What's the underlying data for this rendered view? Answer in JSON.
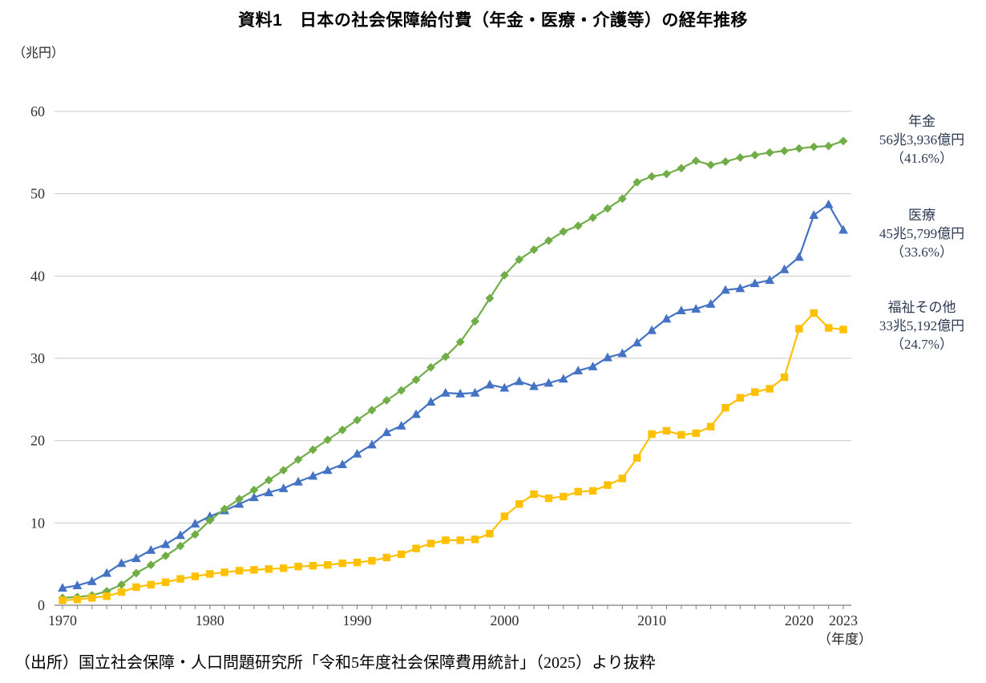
{
  "title": "資料1　日本の社会保障給付費（年金・医療・介護等）の経年推移",
  "y_axis_unit": "（兆円）",
  "x_axis_unit": "（年度）",
  "source": "（出所）国立社会保障・人口問題研究所「令和5年度社会保障費用統計」（2025）より抜粋",
  "annotations": [
    {
      "series": "pension",
      "lines": [
        "年金",
        "56兆3,936億円",
        "（41.6%）"
      ]
    },
    {
      "series": "medical",
      "lines": [
        "医療",
        "45兆5,799億円",
        "（33.6%）"
      ]
    },
    {
      "series": "welfare",
      "lines": [
        "福祉その他",
        "33兆5,192億円",
        "（24.7%）"
      ]
    }
  ],
  "chart_data": {
    "type": "line",
    "title": "資料1　日本の社会保障給付費（年金・医療・介護等）の経年推移",
    "xlabel": "年度",
    "ylabel": "兆円",
    "ylim": [
      0,
      60
    ],
    "yticks": [
      0,
      10,
      20,
      30,
      40,
      50,
      60
    ],
    "xticks": [
      1970,
      1980,
      1990,
      2000,
      2010,
      2020,
      2023
    ],
    "grid": true,
    "legend_position": "right",
    "x": [
      1970,
      1971,
      1972,
      1973,
      1974,
      1975,
      1976,
      1977,
      1978,
      1979,
      1980,
      1981,
      1982,
      1983,
      1984,
      1985,
      1986,
      1987,
      1988,
      1989,
      1990,
      1991,
      1992,
      1993,
      1994,
      1995,
      1996,
      1997,
      1998,
      1999,
      2000,
      2001,
      2002,
      2003,
      2004,
      2005,
      2006,
      2007,
      2008,
      2009,
      2010,
      2011,
      2012,
      2013,
      2014,
      2015,
      2016,
      2017,
      2018,
      2019,
      2020,
      2021,
      2022,
      2023
    ],
    "series": [
      {
        "id": "pension",
        "name": "年金",
        "color": "#70ad47",
        "marker": "diamond",
        "z": 2,
        "final_value_label": "56兆3,936億円",
        "final_share_label": "（41.6%）",
        "values": [
          0.9,
          1.0,
          1.2,
          1.7,
          2.5,
          3.9,
          4.9,
          6.0,
          7.2,
          8.6,
          10.3,
          11.7,
          12.9,
          14.0,
          15.2,
          16.4,
          17.7,
          18.9,
          20.1,
          21.3,
          22.5,
          23.7,
          24.9,
          26.1,
          27.4,
          28.9,
          30.2,
          32.0,
          34.5,
          37.3,
          40.1,
          42.0,
          43.2,
          44.3,
          45.4,
          46.1,
          47.1,
          48.2,
          49.4,
          51.4,
          52.1,
          52.4,
          53.1,
          54.0,
          53.5,
          53.9,
          54.4,
          54.7,
          55.0,
          55.2,
          55.5,
          55.7,
          55.8,
          56.4
        ]
      },
      {
        "id": "medical",
        "name": "医療",
        "color": "#4472c4",
        "marker": "triangle",
        "z": 1,
        "final_value_label": "45兆5,799億円",
        "final_share_label": "（33.6%）",
        "values": [
          2.1,
          2.4,
          2.9,
          3.9,
          5.1,
          5.7,
          6.7,
          7.4,
          8.5,
          9.9,
          10.8,
          11.5,
          12.3,
          13.1,
          13.7,
          14.2,
          15.0,
          15.7,
          16.4,
          17.1,
          18.4,
          19.5,
          21.0,
          21.8,
          23.2,
          24.7,
          25.8,
          25.7,
          25.8,
          26.8,
          26.4,
          27.2,
          26.6,
          27.0,
          27.5,
          28.5,
          29.0,
          30.1,
          30.6,
          31.9,
          33.4,
          34.8,
          35.8,
          36.0,
          36.6,
          38.3,
          38.5,
          39.1,
          39.5,
          40.8,
          42.3,
          47.4,
          48.7,
          45.6
        ]
      },
      {
        "id": "welfare",
        "name": "福祉その他",
        "color": "#ffc000",
        "marker": "square",
        "z": 3,
        "final_value_label": "33兆5,192億円",
        "final_share_label": "（24.7%）",
        "values": [
          0.6,
          0.7,
          0.9,
          1.1,
          1.6,
          2.2,
          2.5,
          2.8,
          3.2,
          3.5,
          3.8,
          4.0,
          4.2,
          4.3,
          4.4,
          4.5,
          4.7,
          4.8,
          4.9,
          5.1,
          5.2,
          5.4,
          5.8,
          6.2,
          6.9,
          7.5,
          7.9,
          7.9,
          8.0,
          8.7,
          10.8,
          12.3,
          13.5,
          13.0,
          13.2,
          13.8,
          13.9,
          14.6,
          15.4,
          17.9,
          20.8,
          21.2,
          20.7,
          20.9,
          21.7,
          24.0,
          25.2,
          25.9,
          26.3,
          27.7,
          33.6,
          35.5,
          33.7,
          33.5
        ]
      }
    ],
    "style": {
      "grid_color": "#c9c9c9",
      "axis_color": "#7f7f7f",
      "tick_text_color": "#303030"
    }
  }
}
